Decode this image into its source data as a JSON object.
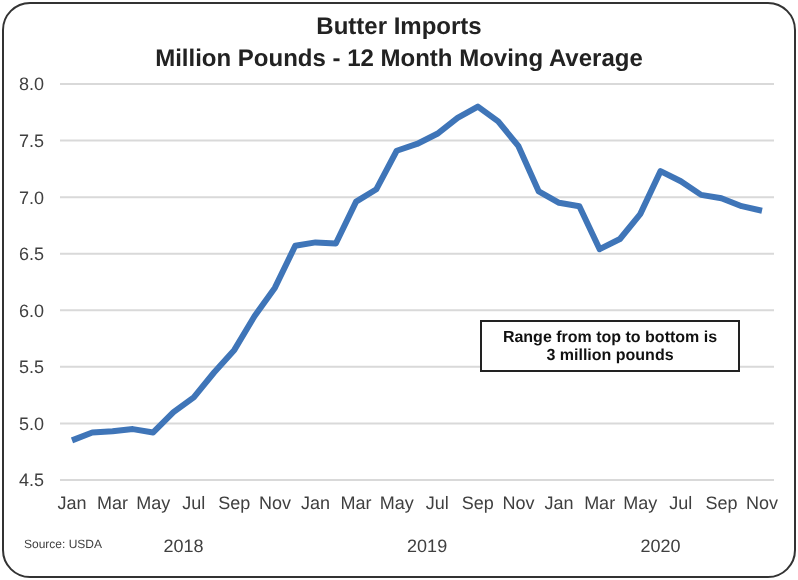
{
  "chart_data": {
    "type": "line",
    "title": "Butter Imports",
    "subtitle": "Million Pounds - 12 Month Moving Average",
    "categories": [
      "Jan",
      null,
      "Mar",
      null,
      "May",
      null,
      "Jul",
      null,
      "Sep",
      null,
      "Nov",
      null,
      "Jan",
      null,
      "Mar",
      null,
      "May",
      null,
      "Jul",
      null,
      "Sep",
      null,
      "Nov",
      null,
      "Jan",
      null,
      "Mar",
      null,
      "May",
      null,
      "Jul",
      null,
      "Sep",
      null,
      "Nov"
    ],
    "series": [
      {
        "color": "#3f75b8",
        "values": [
          4.85,
          4.92,
          4.93,
          4.95,
          4.92,
          5.1,
          5.23,
          5.45,
          5.65,
          5.95,
          6.2,
          6.57,
          6.6,
          6.59,
          6.96,
          7.07,
          7.41,
          7.47,
          7.56,
          7.7,
          7.8,
          7.67,
          7.45,
          7.05,
          6.95,
          6.92,
          6.54,
          6.63,
          6.85,
          7.23,
          7.14,
          7.02,
          6.99,
          6.92,
          6.88
        ]
      }
    ],
    "ylim": [
      4.5,
      8.0
    ],
    "yticks": [
      {
        "value": 4.5,
        "label": "4.5"
      },
      {
        "value": 5,
        "label": "5.0"
      },
      {
        "value": 5.5,
        "label": "5.5"
      },
      {
        "value": 6,
        "label": "6.0"
      },
      {
        "value": 6.5,
        "label": "6.5"
      },
      {
        "value": 7,
        "label": "7.0"
      },
      {
        "value": 7.5,
        "label": "7.5"
      },
      {
        "value": 8,
        "label": "8.0"
      }
    ],
    "grid": "y",
    "line_style": "solid",
    "annotations": [
      "Range from top to bottom is\n3 million pounds",
      "Source: USDA",
      "2018",
      "2019",
      "2020"
    ]
  }
}
